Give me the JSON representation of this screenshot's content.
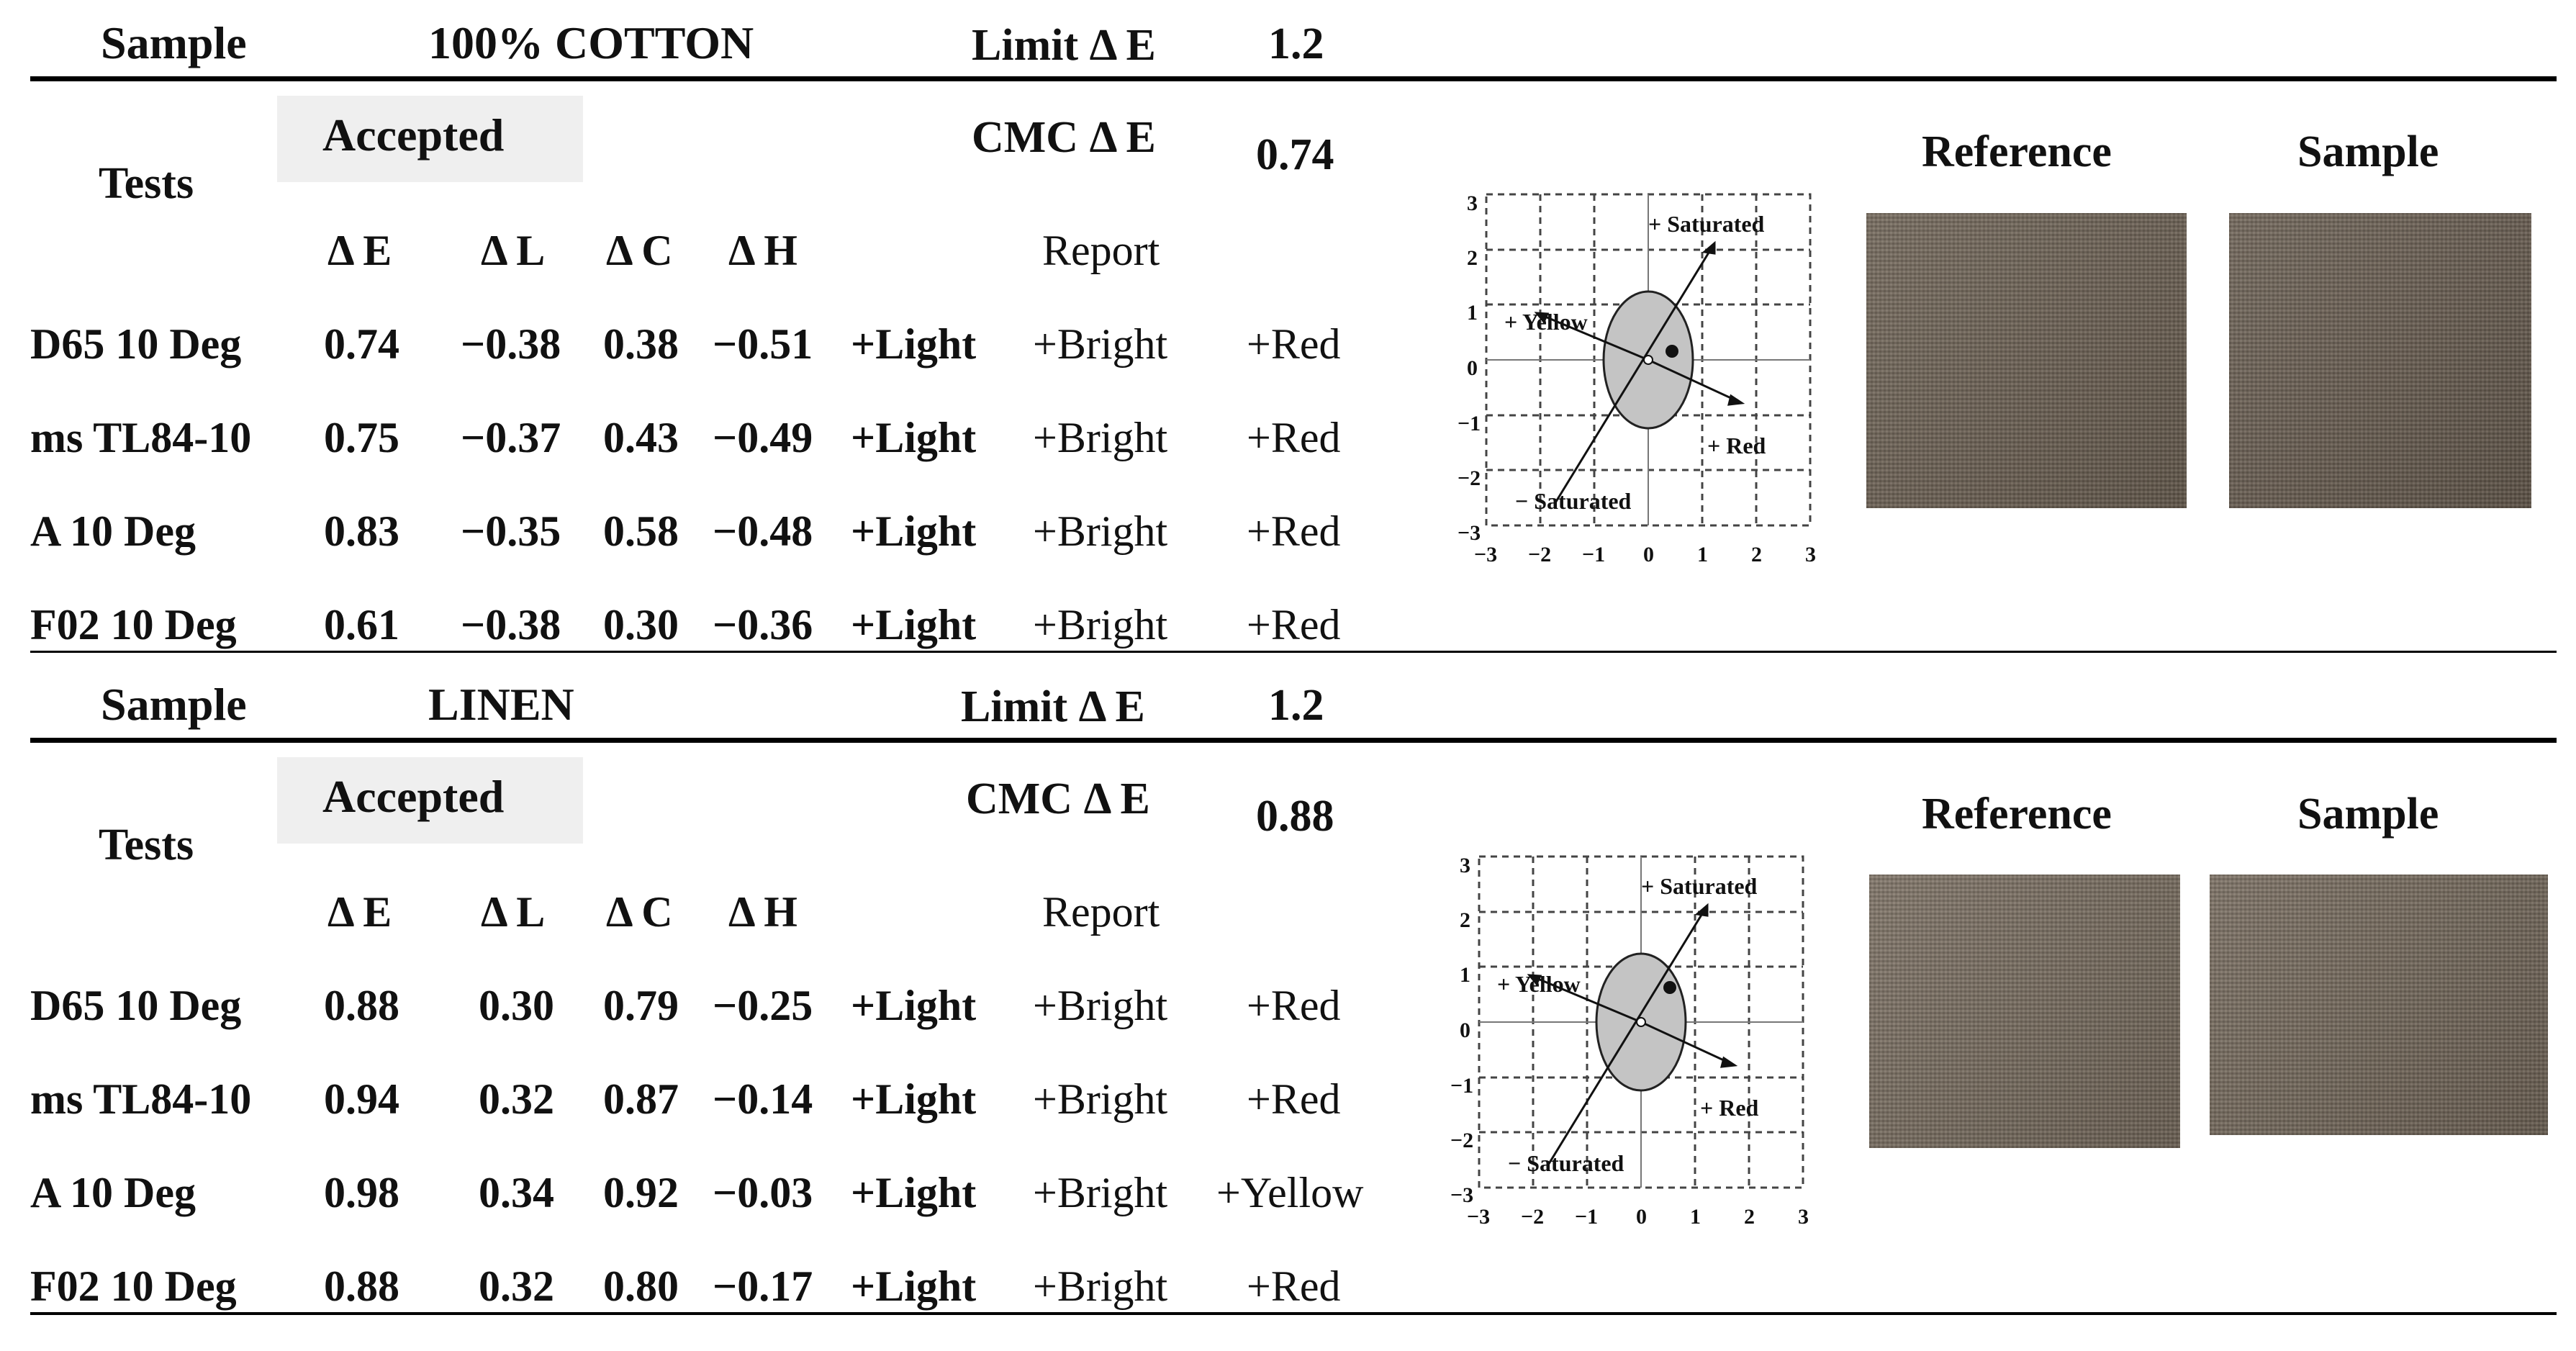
{
  "sections": [
    {
      "sample_label": "Sample",
      "sample_value": "100% COTTON",
      "limit_label": "Limit Δ E",
      "limit_value": "1.2",
      "tests_label": "Tests",
      "status": "Accepted",
      "cmc_label": "CMC Δ E",
      "cmc_value": "0.74",
      "columns": [
        "Δ E",
        "Δ L",
        "Δ C",
        "Δ H"
      ],
      "report_label": "Report",
      "rows": [
        {
          "name": "D65 10 Deg",
          "dE": "0.74",
          "dL": "−0.38",
          "dC": "0.38",
          "dH": "−0.51",
          "r1": "+Light",
          "r2": "+Bright",
          "r3": "+Red"
        },
        {
          "name": "ms TL84-10",
          "dE": "0.75",
          "dL": "−0.37",
          "dC": "0.43",
          "dH": "−0.49",
          "r1": "+Light",
          "r2": "+Bright",
          "r3": "+Red"
        },
        {
          "name": "A 10 Deg",
          "dE": "0.83",
          "dL": "−0.35",
          "dC": "0.58",
          "dH": "−0.48",
          "r1": "+Light",
          "r2": "+Bright",
          "r3": "+Red"
        },
        {
          "name": "F02 10 Deg",
          "dE": "0.61",
          "dL": "−0.38",
          "dC": "0.30",
          "dH": "−0.36",
          "r1": "+Light",
          "r2": "+Bright",
          "r3": "+Red"
        }
      ],
      "reference_label": "Reference",
      "sample_image_label": "Sample",
      "reference_color": "#6f6355",
      "sample_color": "#6b5f52",
      "diagram": {
        "ticks": [
          "−3",
          "−2",
          "−1",
          "0",
          "1",
          "2",
          "3"
        ],
        "label_saturated_pos": "+ Saturated",
        "label_saturated_neg": "− Saturated",
        "label_yellow": "+ Yellow",
        "label_red": "+ Red"
      }
    },
    {
      "sample_label": "Sample",
      "sample_value": "LINEN",
      "limit_label": "Limit  Δ E",
      "limit_value": "1.2",
      "tests_label": "Tests",
      "status": "Accepted",
      "cmc_label": "CMC  Δ E",
      "cmc_value": "0.88",
      "columns": [
        "Δ E",
        "Δ L",
        "Δ C",
        "Δ H"
      ],
      "report_label": "Report",
      "rows": [
        {
          "name": "D65 10 Deg",
          "dE": "0.88",
          "dL": "0.30",
          "dC": "0.79",
          "dH": "−0.25",
          "r1": "+Light",
          "r2": "+Bright",
          "r3": "+Red"
        },
        {
          "name": "ms TL84-10",
          "dE": "0.94",
          "dL": "0.32",
          "dC": "0.87",
          "dH": "−0.14",
          "r1": "+Light",
          "r2": "+Bright",
          "r3": "+Red"
        },
        {
          "name": "A 10 Deg",
          "dE": "0.98",
          "dL": "0.34",
          "dC": "0.92",
          "dH": "−0.03",
          "r1": "+Light",
          "r2": "+Bright",
          "r3": "+Yellow"
        },
        {
          "name": "F02 10 Deg",
          "dE": "0.88",
          "dL": "0.32",
          "dC": "0.80",
          "dH": "−0.17",
          "r1": "+Light",
          "r2": "+Bright",
          "r3": "+Red"
        }
      ],
      "reference_label": "Reference",
      "sample_image_label": "Sample",
      "reference_color": "#7a6e60",
      "sample_color": "#766a5c",
      "diagram": {
        "ticks": [
          "−3",
          "−2",
          "−1",
          "0",
          "1",
          "2",
          "3"
        ],
        "label_saturated_pos": "+ Saturated",
        "label_saturated_neg": "− Saturated",
        "label_yellow": "+ Yellow",
        "label_red": "+ Red"
      }
    }
  ]
}
